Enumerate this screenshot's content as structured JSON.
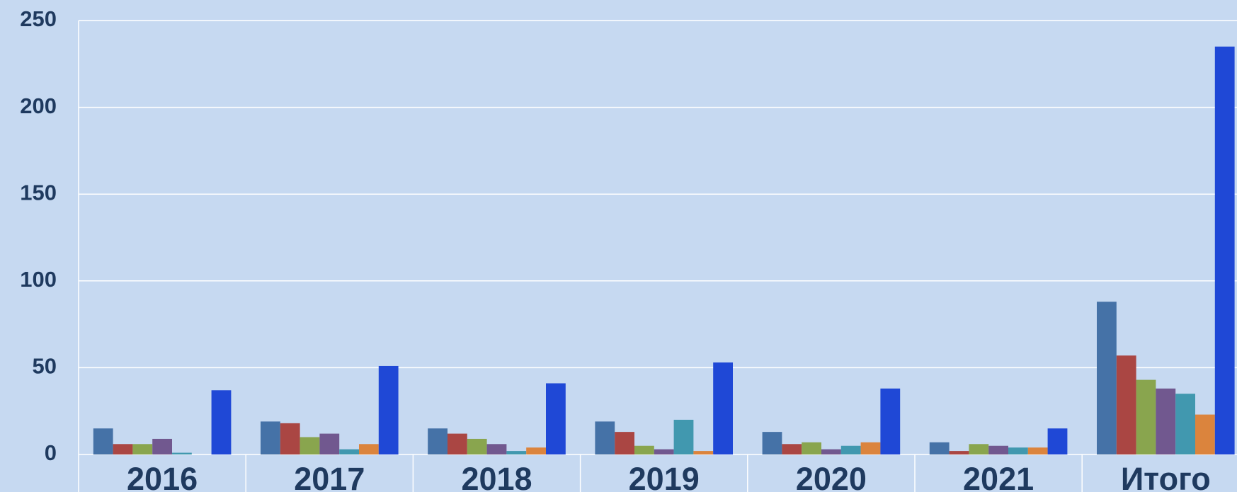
{
  "chart_data": {
    "type": "bar",
    "categories": [
      "2016",
      "2017",
      "2018",
      "2019",
      "2020",
      "2021",
      "Итого"
    ],
    "series": [
      {
        "color": "#4572a7",
        "values": [
          15,
          19,
          15,
          19,
          13,
          7,
          88
        ]
      },
      {
        "color": "#aa4643",
        "values": [
          6,
          18,
          12,
          13,
          6,
          2,
          57
        ]
      },
      {
        "color": "#89a54e",
        "values": [
          6,
          10,
          9,
          5,
          7,
          6,
          43
        ]
      },
      {
        "color": "#71588f",
        "values": [
          9,
          12,
          6,
          3,
          3,
          5,
          38
        ]
      },
      {
        "color": "#4198af",
        "values": [
          1,
          3,
          2,
          20,
          5,
          4,
          35
        ]
      },
      {
        "color": "#db843d",
        "values": [
          0,
          6,
          4,
          2,
          7,
          4,
          23
        ]
      },
      {
        "color": "#1f48d6",
        "values": [
          37,
          51,
          41,
          53,
          38,
          15,
          235
        ]
      }
    ],
    "ylim": [
      0,
      250
    ],
    "yticks": [
      0,
      50,
      100,
      150,
      200,
      250
    ],
    "grid": true
  }
}
